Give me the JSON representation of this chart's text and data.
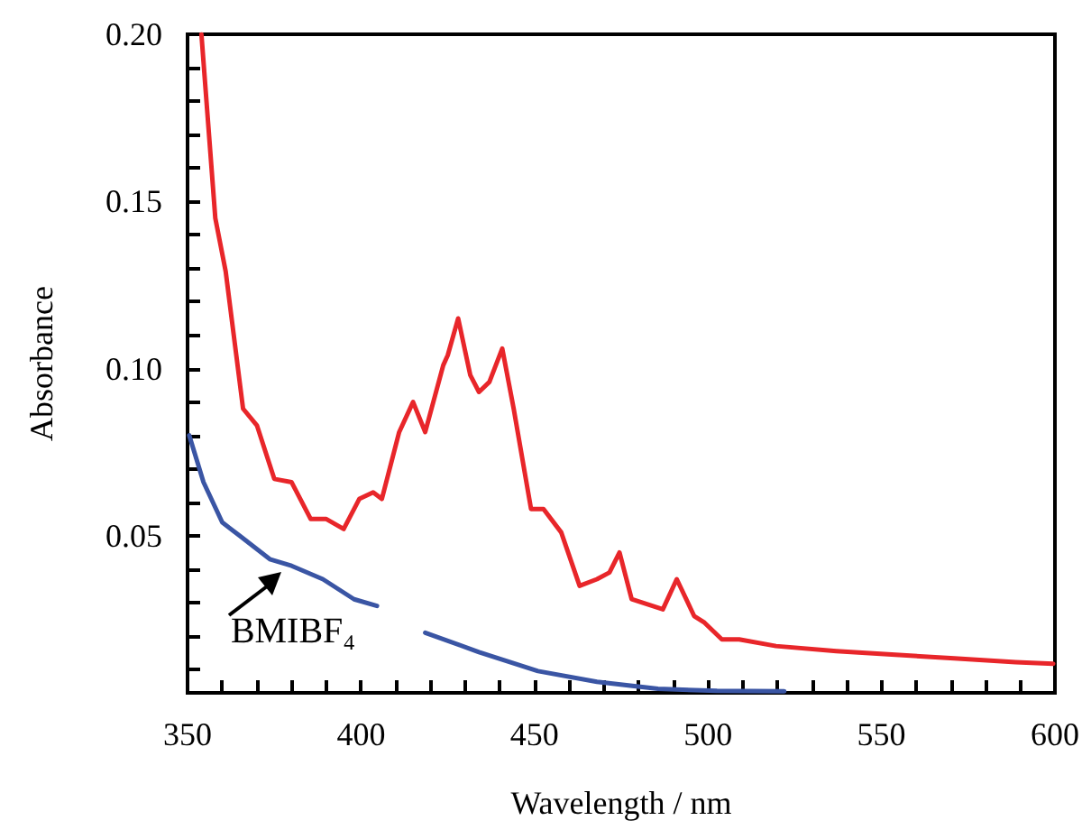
{
  "chart_data": {
    "type": "line",
    "xlabel": "Wavelength / nm",
    "ylabel": "Absorbance",
    "xlim": [
      350,
      600
    ],
    "ylim": [
      0.003,
      0.2
    ],
    "xticks": [
      350,
      {
        "value": 360,
        "label": null
      },
      {
        "value": 370,
        "label": null
      },
      {
        "value": 380,
        "label": null
      },
      {
        "value": 390,
        "label": null
      },
      400,
      {
        "value": 410,
        "label": null
      },
      {
        "value": 420,
        "label": null
      },
      {
        "value": 430,
        "label": null
      },
      {
        "value": 440,
        "label": null
      },
      450,
      {
        "value": 460,
        "label": null
      },
      {
        "value": 470,
        "label": null
      },
      {
        "value": 480,
        "label": null
      },
      {
        "value": 490,
        "label": null
      },
      500,
      {
        "value": 510,
        "label": null
      },
      {
        "value": 520,
        "label": null
      },
      {
        "value": 530,
        "label": null
      },
      {
        "value": 540,
        "label": null
      },
      550,
      {
        "value": 560,
        "label": null
      },
      {
        "value": 570,
        "label": null
      },
      {
        "value": 580,
        "label": null
      },
      {
        "value": 590,
        "label": null
      },
      600
    ],
    "yticks": [
      {
        "value": 0.01,
        "label": null
      },
      {
        "value": 0.02,
        "label": null
      },
      {
        "value": 0.03,
        "label": null
      },
      {
        "value": 0.04,
        "label": null
      },
      0.05,
      {
        "value": 0.06,
        "label": null
      },
      {
        "value": 0.07,
        "label": null
      },
      {
        "value": 0.08,
        "label": null
      },
      {
        "value": 0.09,
        "label": null
      },
      {
        "value": 0.1,
        "label": "0.10"
      },
      {
        "value": 0.11,
        "label": null
      },
      {
        "value": 0.12,
        "label": null
      },
      {
        "value": 0.13,
        "label": null
      },
      {
        "value": 0.14,
        "label": null
      },
      0.15,
      {
        "value": 0.16,
        "label": null
      },
      {
        "value": 0.17,
        "label": null
      },
      {
        "value": 0.18,
        "label": null
      },
      {
        "value": 0.19,
        "label": null
      },
      {
        "value": 0.2,
        "label": "0.20"
      }
    ],
    "grid": false,
    "marker": "none",
    "line_style": "solid",
    "series": [
      {
        "color": "#e8262a",
        "x": [
          354,
          358,
          361,
          366,
          370,
          375,
          380,
          385.5,
          390,
          395,
          399.5,
          403.5,
          406,
          411,
          415,
          418.5,
          423.7,
          425,
          428,
          431.5,
          434,
          437,
          440.7,
          444,
          449,
          452.6,
          457.7,
          463,
          468,
          471.6,
          474.5,
          478,
          487,
          491,
          496,
          499,
          504,
          509,
          519.6,
          537,
          554,
          571,
          588.7,
          599.5
        ],
        "values": [
          0.2,
          0.145,
          0.129,
          0.088,
          0.083,
          0.067,
          0.066,
          0.055,
          0.055,
          0.052,
          0.061,
          0.063,
          0.061,
          0.081,
          0.09,
          0.081,
          0.101,
          0.104,
          0.115,
          0.098,
          0.093,
          0.096,
          0.106,
          0.088,
          0.058,
          0.058,
          0.051,
          0.035,
          0.037,
          0.039,
          0.045,
          0.031,
          0.028,
          0.037,
          0.026,
          0.024,
          0.019,
          0.019,
          0.017,
          0.0155,
          0.0144,
          0.0133,
          0.0122,
          0.0117
        ]
      },
      {
        "color": "#3a55a4",
        "x": [
          350.5,
          354.6,
          360,
          365,
          373.7,
          380,
          389,
          398,
          404.6,
          411,
          418.5,
          434,
          451,
          468,
          485.6,
          502.6,
          522
        ],
        "values": [
          0.08,
          0.066,
          0.054,
          0.05,
          0.043,
          0.041,
          0.037,
          0.031,
          0.029,
          null,
          0.021,
          0.0152,
          0.0095,
          0.0063,
          0.0042,
          0.0036,
          0.0035
        ]
      }
    ],
    "annotations": [
      {
        "text": "BMIBF₄",
        "x": 377,
        "y": 0.039
      }
    ]
  }
}
